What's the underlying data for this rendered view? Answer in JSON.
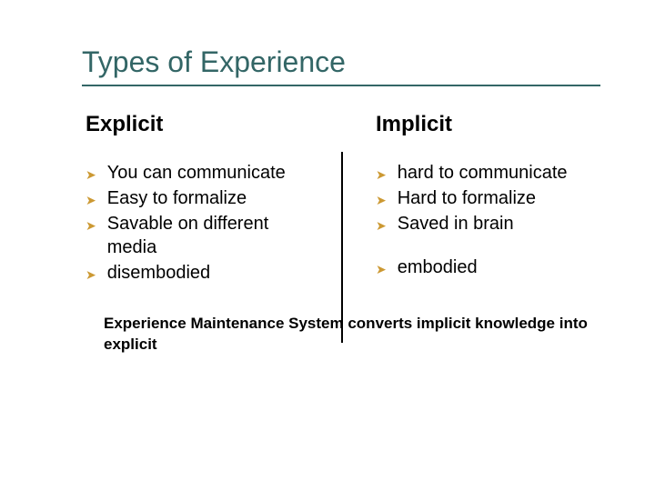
{
  "title": "Types of Experience",
  "colors": {
    "title_color": "#336666",
    "underline_color": "#336666",
    "text_color": "#000000",
    "bullet_color": "#cc9933",
    "background_color": "#ffffff",
    "divider_color": "#000000"
  },
  "typography": {
    "title_fontsize": 32,
    "heading_fontsize": 24,
    "body_fontsize": 20,
    "footer_fontsize": 17,
    "font_family": "Verdana"
  },
  "left": {
    "heading": "Explicit",
    "items": [
      "You can communicate",
      "Easy to formalize",
      "Savable on different media",
      "disembodied"
    ]
  },
  "right": {
    "heading": "Implicit",
    "items_top": [
      "hard to communicate",
      "Hard to formalize",
      "Saved in brain"
    ],
    "items_bottom": [
      "embodied"
    ]
  },
  "footer": "Experience Maintenance System converts implicit knowledge into explicit"
}
